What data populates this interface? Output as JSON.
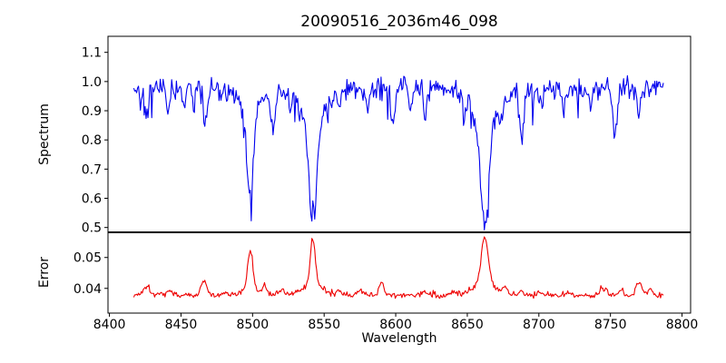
{
  "figure": {
    "title": "20090516_2036m46_098",
    "xlabel": "Wavelength",
    "background": "#ffffff",
    "spine_color": "#000000",
    "text_color": "#000000"
  },
  "x_axis": {
    "label": "Wavelength",
    "ticks": [
      {
        "value": 8400,
        "label": "8400"
      },
      {
        "value": 8450,
        "label": "8450"
      },
      {
        "value": 8500,
        "label": "8500"
      },
      {
        "value": 8550,
        "label": "8550"
      },
      {
        "value": 8600,
        "label": "8600"
      },
      {
        "value": 8650,
        "label": "8650"
      },
      {
        "value": 8700,
        "label": "8700"
      },
      {
        "value": 8750,
        "label": "8750"
      },
      {
        "value": 8800,
        "label": "8800"
      }
    ]
  },
  "chart_data": [
    {
      "type": "line",
      "name": "spectrum",
      "ylabel": "Spectrum",
      "line_color": "#0000ee",
      "xlim": [
        8399,
        8806
      ],
      "ylim": [
        0.485,
        1.155
      ],
      "yticks": [
        {
          "value": 0.5,
          "label": "0.5"
        },
        {
          "value": 0.6,
          "label": "0.6"
        },
        {
          "value": 0.7,
          "label": "0.7"
        },
        {
          "value": 0.8,
          "label": "0.8"
        },
        {
          "value": 0.9,
          "label": "0.9"
        },
        {
          "value": 1.0,
          "label": "1.0"
        },
        {
          "value": 1.1,
          "label": "1.1"
        }
      ],
      "x_start": 8417,
      "x_end": 8787,
      "points": 560,
      "baseline": 0.975,
      "noise_amplitude": 0.048,
      "up_spike": {
        "prob": 0.012,
        "min": 0.05,
        "max": 0.12
      },
      "down_spike": {
        "prob": 0.03,
        "min": 0.04,
        "max": 0.1
      },
      "seed": 42,
      "features": [
        {
          "center": 8426.0,
          "amp": -0.1,
          "width": 1.2
        },
        {
          "center": 8441.0,
          "amp": -0.08,
          "width": 1.1
        },
        {
          "center": 8452.0,
          "amp": -0.05,
          "width": 1.0
        },
        {
          "center": 8459.0,
          "amp": -0.07,
          "width": 1.0
        },
        {
          "center": 8467.0,
          "amp": -0.12,
          "width": 1.3
        },
        {
          "center": 8482.0,
          "amp": -0.05,
          "width": 1.0
        },
        {
          "center": 8498.3,
          "amp": -0.29,
          "width": 2.2
        },
        {
          "center": 8498.3,
          "amp": -0.08,
          "width": 7.0
        },
        {
          "center": 8514.0,
          "amp": -0.14,
          "width": 1.5
        },
        {
          "center": 8527.0,
          "amp": -0.05,
          "width": 1.0
        },
        {
          "center": 8542.1,
          "amp": -0.35,
          "width": 2.6
        },
        {
          "center": 8542.1,
          "amp": -0.12,
          "width": 9.0
        },
        {
          "center": 8560.0,
          "amp": -0.04,
          "width": 1.0
        },
        {
          "center": 8580.0,
          "amp": -0.06,
          "width": 1.0
        },
        {
          "center": 8598.0,
          "amp": -0.12,
          "width": 1.4
        },
        {
          "center": 8610.0,
          "amp": -0.06,
          "width": 1.0
        },
        {
          "center": 8621.0,
          "amp": -0.08,
          "width": 1.2
        },
        {
          "center": 8648.0,
          "amp": -0.07,
          "width": 1.1
        },
        {
          "center": 8662.1,
          "amp": -0.35,
          "width": 2.8
        },
        {
          "center": 8662.1,
          "amp": -0.12,
          "width": 9.0
        },
        {
          "center": 8674.0,
          "amp": -0.06,
          "width": 1.0
        },
        {
          "center": 8688.0,
          "amp": -0.15,
          "width": 1.7
        },
        {
          "center": 8702.0,
          "amp": -0.05,
          "width": 1.0
        },
        {
          "center": 8717.0,
          "amp": -0.07,
          "width": 1.1
        },
        {
          "center": 8736.0,
          "amp": -0.05,
          "width": 1.0
        },
        {
          "center": 8753.0,
          "amp": -0.14,
          "width": 1.5
        },
        {
          "center": 8770.0,
          "amp": -0.07,
          "width": 1.1
        }
      ]
    },
    {
      "type": "line",
      "name": "error",
      "ylabel": "Error",
      "line_color": "#ee0000",
      "xlim": [
        8399,
        8806
      ],
      "ylim": [
        0.032,
        0.058
      ],
      "yticks": [
        {
          "value": 0.04,
          "label": "0.04"
        },
        {
          "value": 0.05,
          "label": "0.05"
        }
      ],
      "x_start": 8417,
      "x_end": 8787,
      "points": 560,
      "baseline": 0.0378,
      "noise_amplitude": 0.0011,
      "up_spike": {
        "prob": 0.03,
        "min": 0.0005,
        "max": 0.002
      },
      "down_spike": {
        "prob": 0.0,
        "min": 0,
        "max": 0
      },
      "seed": 1337,
      "features": [
        {
          "center": 8426.0,
          "amp": 0.003,
          "width": 2.5
        },
        {
          "center": 8442.0,
          "amp": 0.0015,
          "width": 2.0
        },
        {
          "center": 8466.0,
          "amp": 0.0045,
          "width": 1.8
        },
        {
          "center": 8481.0,
          "amp": 0.001,
          "width": 1.5
        },
        {
          "center": 8498.3,
          "amp": 0.0125,
          "width": 1.8
        },
        {
          "center": 8498.3,
          "amp": 0.002,
          "width": 6.0
        },
        {
          "center": 8508.0,
          "amp": 0.0018,
          "width": 1.5
        },
        {
          "center": 8520.0,
          "amp": 0.0015,
          "width": 2.0
        },
        {
          "center": 8542.1,
          "amp": 0.015,
          "width": 1.7
        },
        {
          "center": 8542.1,
          "amp": 0.0035,
          "width": 7.0
        },
        {
          "center": 8560.0,
          "amp": 0.001,
          "width": 1.5
        },
        {
          "center": 8575.0,
          "amp": 0.0012,
          "width": 2.0
        },
        {
          "center": 8590.0,
          "amp": 0.0045,
          "width": 1.6
        },
        {
          "center": 8620.0,
          "amp": 0.001,
          "width": 2.0
        },
        {
          "center": 8640.0,
          "amp": 0.0012,
          "width": 2.0
        },
        {
          "center": 8662.1,
          "amp": 0.015,
          "width": 2.3
        },
        {
          "center": 8662.1,
          "amp": 0.004,
          "width": 8.0
        },
        {
          "center": 8676.0,
          "amp": 0.0018,
          "width": 1.5
        },
        {
          "center": 8688.0,
          "amp": 0.0015,
          "width": 1.5
        },
        {
          "center": 8700.0,
          "amp": 0.001,
          "width": 1.5
        },
        {
          "center": 8720.0,
          "amp": 0.0012,
          "width": 2.0
        },
        {
          "center": 8745.0,
          "amp": 0.0022,
          "width": 2.2
        },
        {
          "center": 8757.0,
          "amp": 0.0015,
          "width": 1.5
        },
        {
          "center": 8770.0,
          "amp": 0.0045,
          "width": 1.8
        },
        {
          "center": 8778.0,
          "amp": 0.002,
          "width": 1.5
        }
      ]
    }
  ]
}
